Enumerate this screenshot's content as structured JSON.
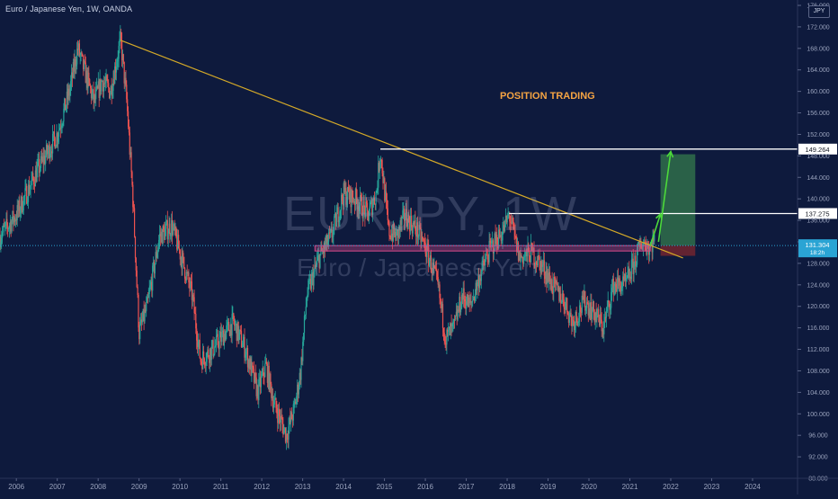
{
  "header": {
    "title": "Euro / Japanese Yen, 1W, OANDA",
    "currency_badge": "JPY"
  },
  "watermark": {
    "main": "EURJPY, 1W",
    "sub": "Euro / Japanese Yen"
  },
  "annotation": "POSITION TRADING",
  "chart_data": {
    "type": "candlestick",
    "title": "Euro / Japanese Yen, 1W, OANDA",
    "xlabel": "",
    "ylabel": "",
    "x_ticks": [
      "2006",
      "2007",
      "2008",
      "2009",
      "2010",
      "2011",
      "2012",
      "2013",
      "2014",
      "2015",
      "2016",
      "2017",
      "2018",
      "2019",
      "2020",
      "2021",
      "2022",
      "2023",
      "2024"
    ],
    "y_ticks": [
      88,
      92,
      96,
      100,
      104,
      108,
      112,
      116,
      120,
      124,
      128,
      132,
      136,
      140,
      144,
      148,
      152,
      156,
      160,
      164,
      168,
      172,
      176
    ],
    "y_tick_labels": [
      "88.000",
      "92.000",
      "96.000",
      "100.000",
      "104.000",
      "108.000",
      "112.000",
      "116.000",
      "120.000",
      "124.000",
      "128.000",
      "132.000",
      "136.000",
      "140.000",
      "144.000",
      "148.000",
      "152.000",
      "156.000",
      "160.000",
      "164.000",
      "168.000",
      "172.000",
      "176.000"
    ],
    "xlim": [
      2005.6,
      2025.1
    ],
    "ylim": [
      88,
      176
    ],
    "price_path": [
      [
        2005.6,
        133
      ],
      [
        2006.0,
        137
      ],
      [
        2006.5,
        145
      ],
      [
        2007.0,
        152
      ],
      [
        2007.3,
        160
      ],
      [
        2007.5,
        168
      ],
      [
        2007.7,
        163
      ],
      [
        2007.9,
        158
      ],
      [
        2008.1,
        162
      ],
      [
        2008.3,
        160
      ],
      [
        2008.55,
        169.5
      ],
      [
        2008.7,
        158
      ],
      [
        2008.85,
        140
      ],
      [
        2009.0,
        115
      ],
      [
        2009.2,
        120
      ],
      [
        2009.5,
        133
      ],
      [
        2009.8,
        135
      ],
      [
        2010.0,
        130
      ],
      [
        2010.3,
        122
      ],
      [
        2010.5,
        110
      ],
      [
        2010.8,
        112
      ],
      [
        2011.0,
        114
      ],
      [
        2011.3,
        117
      ],
      [
        2011.6,
        112
      ],
      [
        2011.9,
        104
      ],
      [
        2012.1,
        109
      ],
      [
        2012.3,
        102
      ],
      [
        2012.6,
        96
      ],
      [
        2012.8,
        101
      ],
      [
        2012.95,
        108
      ],
      [
        2013.1,
        122
      ],
      [
        2013.4,
        129
      ],
      [
        2013.7,
        133
      ],
      [
        2014.0,
        141
      ],
      [
        2014.3,
        140
      ],
      [
        2014.6,
        137
      ],
      [
        2014.8,
        141
      ],
      [
        2014.9,
        149
      ],
      [
        2015.1,
        134
      ],
      [
        2015.3,
        133
      ],
      [
        2015.5,
        137
      ],
      [
        2015.8,
        134
      ],
      [
        2016.0,
        131
      ],
      [
        2016.3,
        124
      ],
      [
        2016.5,
        114
      ],
      [
        2016.7,
        116
      ],
      [
        2016.9,
        122
      ],
      [
        2017.1,
        120
      ],
      [
        2017.3,
        125
      ],
      [
        2017.6,
        131
      ],
      [
        2017.9,
        134
      ],
      [
        2018.05,
        137
      ],
      [
        2018.3,
        129
      ],
      [
        2018.6,
        130
      ],
      [
        2018.9,
        127
      ],
      [
        2019.1,
        124
      ],
      [
        2019.4,
        121
      ],
      [
        2019.6,
        117
      ],
      [
        2019.9,
        121
      ],
      [
        2020.2,
        118
      ],
      [
        2020.35,
        116
      ],
      [
        2020.6,
        124
      ],
      [
        2020.9,
        124
      ],
      [
        2021.1,
        128
      ],
      [
        2021.3,
        132
      ],
      [
        2021.5,
        131
      ],
      [
        2021.6,
        133
      ]
    ],
    "trendline": {
      "from": [
        2008.55,
        169.5
      ],
      "to": [
        2022.3,
        129
      ],
      "color": "#d4a928"
    },
    "horizontal_levels": [
      {
        "label": "149.264",
        "value": 149.264,
        "from_x": 2014.9
      },
      {
        "label": "137.275",
        "value": 137.275,
        "from_x": 2018.05
      }
    ],
    "support_zone": {
      "low": 130.3,
      "high": 131.3,
      "from_x": 2013.3,
      "to_x": 2021.5,
      "color": "#d64b8a"
    },
    "current_price": {
      "label": "131.304",
      "value": 131.304,
      "countdown": "18:2h"
    },
    "long_position": {
      "from_x": 2021.75,
      "to_x": 2022.6,
      "entry": 131.3,
      "target": 148.3,
      "stop": 129.4
    },
    "projection_arrows": [
      {
        "from": [
          2021.5,
          131.3
        ],
        "to": [
          2021.75,
          137.2
        ]
      },
      {
        "from": [
          2021.7,
          132.0
        ],
        "to": [
          2022.0,
          148.8
        ]
      }
    ],
    "colors": {
      "up": "#26a69a",
      "down": "#ef5350",
      "background": "#0e1a3d",
      "level_line": "#ffffff",
      "projection": "#4cd93a",
      "target_zone": "#2f6e4a",
      "stop_zone": "#6b2530",
      "price_badge": "#2aa4d4"
    },
    "grid": false
  }
}
